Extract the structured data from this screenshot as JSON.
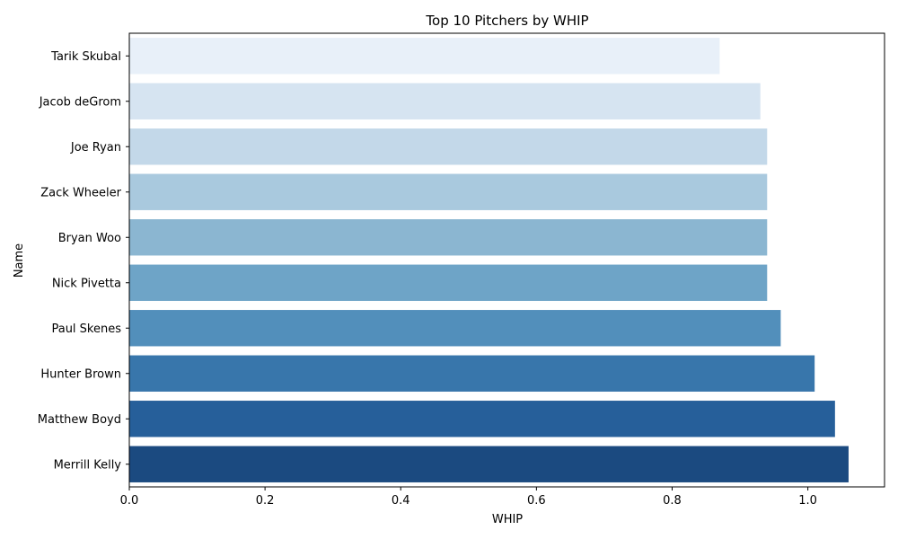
{
  "chart_data": {
    "type": "bar",
    "orientation": "horizontal",
    "title": "Top 10 Pitchers by WHIP",
    "xlabel": "WHIP",
    "ylabel": "Name",
    "xlim": [
      0,
      1.113
    ],
    "xticks": [
      0.0,
      0.2,
      0.4,
      0.6,
      0.8,
      1.0
    ],
    "xtick_labels": [
      "0.0",
      "0.2",
      "0.4",
      "0.6",
      "0.8",
      "1.0"
    ],
    "grid": false,
    "legend": "none",
    "categories": [
      "Tarik Skubal",
      "Jacob deGrom",
      "Joe Ryan",
      "Zack Wheeler",
      "Bryan Woo",
      "Nick Pivetta",
      "Paul Skenes",
      "Hunter Brown",
      "Matthew Boyd",
      "Merrill Kelly"
    ],
    "values": [
      0.87,
      0.93,
      0.94,
      0.94,
      0.94,
      0.94,
      0.96,
      1.01,
      1.04,
      1.06
    ],
    "colors": [
      "#e8f0f9",
      "#d6e4f1",
      "#c3d8e9",
      "#a9c9de",
      "#8bb6d1",
      "#6ea4c7",
      "#528fbb",
      "#3876ab",
      "#265f9a",
      "#1b4a80"
    ]
  }
}
